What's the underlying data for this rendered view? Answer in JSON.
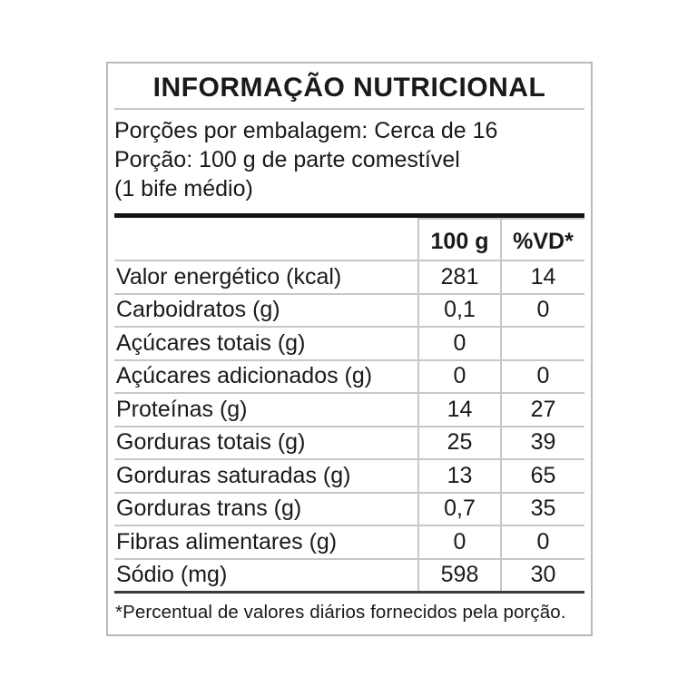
{
  "label": {
    "title": "INFORMAÇÃO NUTRICIONAL",
    "serving_info": {
      "line1": "Porções por embalagem: Cerca de 16",
      "line2": "Porção: 100 g de parte comestível",
      "line3": "(1 bife médio)"
    },
    "table": {
      "col_headers": {
        "amount": "100 g",
        "dv": "%VD*"
      },
      "rows": [
        {
          "label": "Valor energético (kcal)",
          "amount": "281",
          "dv": "14"
        },
        {
          "label": "Carboidratos (g)",
          "amount": "0,1",
          "dv": "0"
        },
        {
          "label": "Açúcares totais (g)",
          "amount": "0",
          "dv": ""
        },
        {
          "label": "Açúcares adicionados (g)",
          "amount": "0",
          "dv": "0"
        },
        {
          "label": "Proteínas (g)",
          "amount": "14",
          "dv": "27"
        },
        {
          "label": "Gorduras totais (g)",
          "amount": "25",
          "dv": "39"
        },
        {
          "label": "Gorduras saturadas (g)",
          "amount": "13",
          "dv": "65"
        },
        {
          "label": "Gorduras trans (g)",
          "amount": "0,7",
          "dv": "35"
        },
        {
          "label": "Fibras alimentares (g)",
          "amount": "0",
          "dv": "0"
        },
        {
          "label": "Sódio (mg)",
          "amount": "598",
          "dv": "30"
        }
      ]
    },
    "footnote": "*Percentual de valores diários fornecidos pela porção.",
    "colors": {
      "text": "#1a1a1a",
      "thick_rule": "#141414",
      "mid_rule": "#3a3a3a",
      "thin_rule": "#c7c7c7",
      "background": "#ffffff"
    }
  }
}
